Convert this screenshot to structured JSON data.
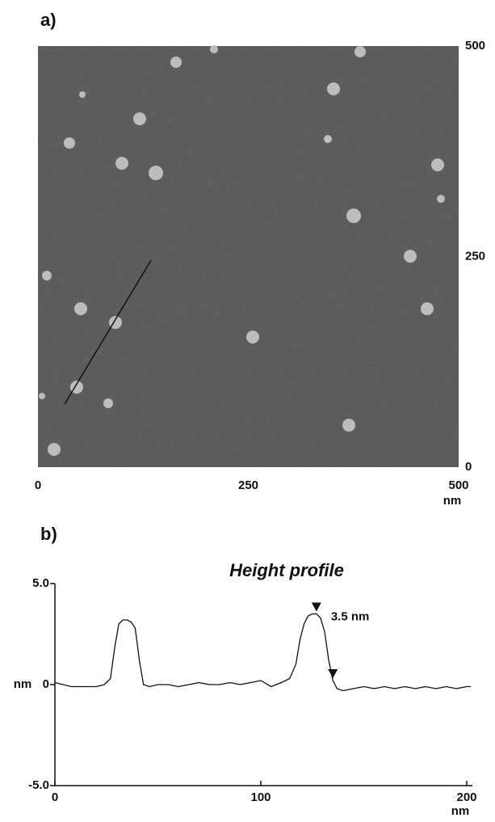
{
  "chart_data": [
    {
      "type": "image",
      "label": "a)",
      "xlabel": "nm",
      "xlim": [
        0,
        500
      ],
      "xticks": [
        0,
        250,
        500
      ],
      "ylim": [
        0,
        500
      ],
      "yticks": [
        0,
        250,
        500
      ]
    },
    {
      "type": "line",
      "label": "b)",
      "title": "Height profile",
      "xlabel": "nm",
      "ylabel": "nm",
      "color": "#111111",
      "xlim": [
        0,
        205
      ],
      "xticks": [
        0,
        100,
        200
      ],
      "ylim": [
        -5,
        5
      ],
      "yticks": [
        {
          "value": 5,
          "label": "5.0"
        },
        0,
        {
          "value": -5,
          "label": "-5.0"
        }
      ],
      "x": [
        0,
        4,
        8,
        12,
        16,
        20,
        24,
        27,
        29,
        31,
        33,
        35,
        37,
        39,
        41,
        43,
        46,
        50,
        55,
        60,
        65,
        70,
        75,
        80,
        85,
        90,
        95,
        100,
        105,
        110,
        114,
        117,
        119,
        121,
        123,
        125,
        127,
        129,
        131,
        133,
        135,
        137,
        140,
        145,
        150,
        155,
        160,
        165,
        170,
        175,
        180,
        185,
        190,
        195,
        200,
        202
      ],
      "values": [
        0.1,
        0,
        -0.1,
        -0.1,
        -0.1,
        -0.1,
        0,
        0.3,
        1.8,
        3.0,
        3.2,
        3.2,
        3.1,
        2.8,
        1.2,
        0,
        -0.1,
        0,
        0,
        -0.1,
        0,
        0.1,
        0,
        0,
        0.1,
        0,
        0.1,
        0.2,
        -0.1,
        0.1,
        0.3,
        1.0,
        2.2,
        3.0,
        3.4,
        3.5,
        3.5,
        3.3,
        2.6,
        1.2,
        0.2,
        -0.2,
        -0.3,
        -0.2,
        -0.1,
        -0.2,
        -0.1,
        -0.2,
        -0.1,
        -0.2,
        -0.1,
        -0.2,
        -0.1,
        -0.2,
        -0.1,
        -0.1
      ],
      "markers": [
        {
          "x": 127,
          "y": 3.5
        },
        {
          "x": 135,
          "y": 0.2
        }
      ],
      "annotation": "3.5 nm"
    }
  ]
}
